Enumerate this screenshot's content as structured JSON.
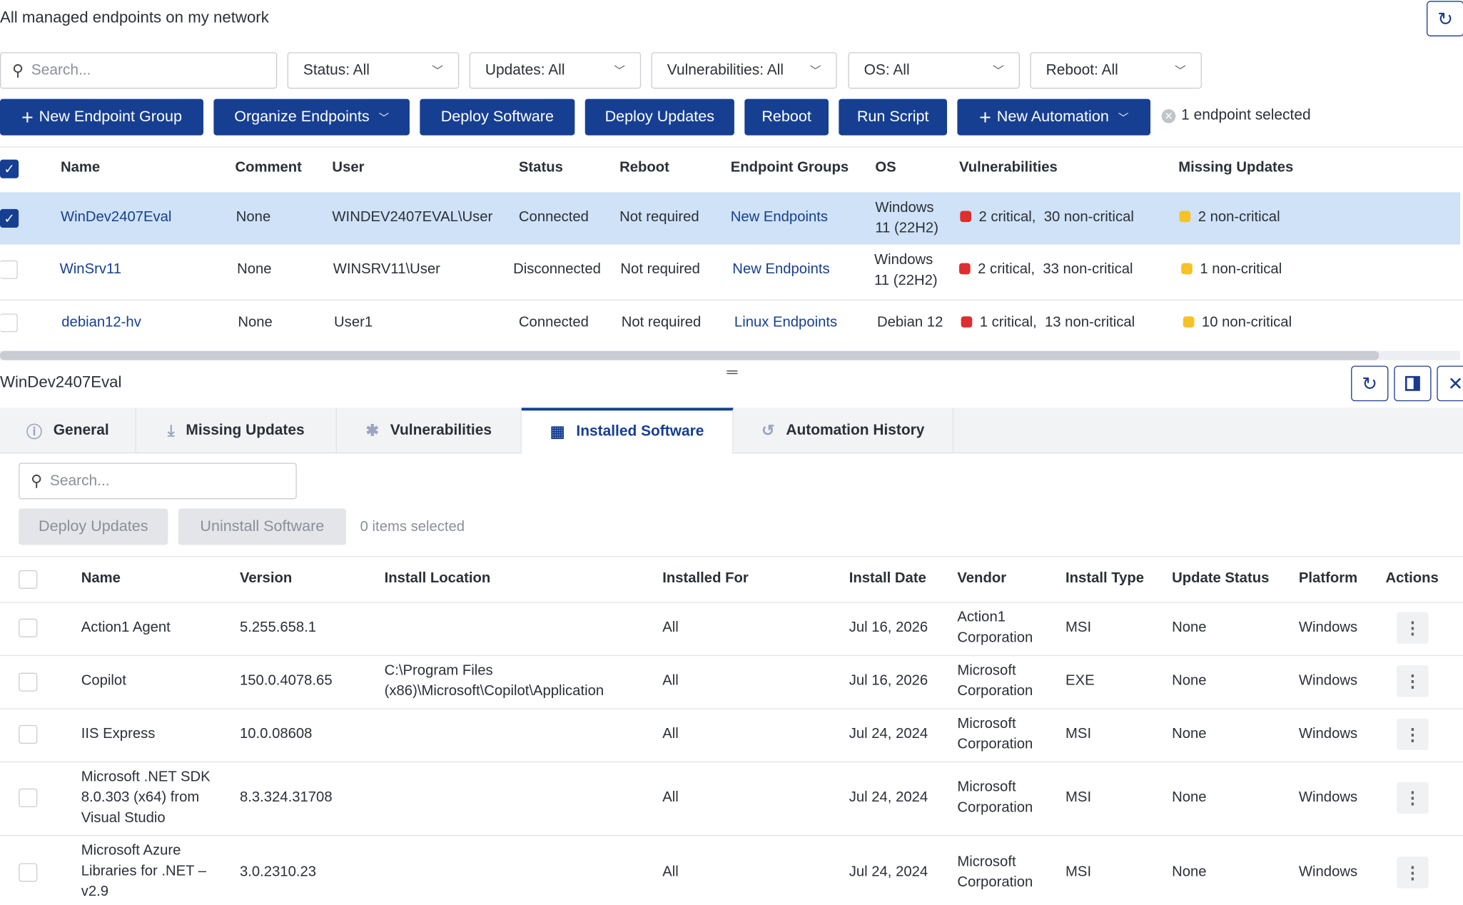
{
  "page": {
    "title": "All managed endpoints on my network"
  },
  "filters": {
    "search_placeholder": "Search...",
    "status": "Status: All",
    "updates": "Updates: All",
    "vulnerabilities": "Vulnerabilities: All",
    "os": "OS: All",
    "reboot": "Reboot: All"
  },
  "toolbar": {
    "new_endpoint_group": "New Endpoint Group",
    "organize_endpoints": "Organize Endpoints",
    "deploy_software": "Deploy Software",
    "deploy_updates": "Deploy Updates",
    "reboot": "Reboot",
    "run_script": "Run Script",
    "new_automation": "New Automation",
    "selection": "1 endpoint selected"
  },
  "endpoints": {
    "headers": {
      "name": "Name",
      "comment": "Comment",
      "user": "User",
      "status": "Status",
      "reboot": "Reboot",
      "groups": "Endpoint Groups",
      "os": "OS",
      "vulnerabilities": "Vulnerabilities",
      "missing": "Missing Updates"
    },
    "rows": [
      {
        "name": "WinDev2407Eval",
        "comment": "None",
        "user": "WINDEV2407EVAL\\User",
        "status": "Connected",
        "reboot": "Not required",
        "group": "New Endpoints",
        "os": "Windows 11 (22H2)",
        "vuln_critical": "2 critical,",
        "vuln_noncritical": "30 non-critical",
        "missing": "2 non-critical"
      },
      {
        "name": "WinSrv11",
        "comment": "None",
        "user": "WINSRV11\\User",
        "status": "Disconnected",
        "reboot": "Not required",
        "group": "New Endpoints",
        "os": "Windows 11 (22H2)",
        "vuln_critical": "2 critical,",
        "vuln_noncritical": "33 non-critical",
        "missing": "1 non-critical"
      },
      {
        "name": "debian12-hv",
        "comment": "None",
        "user": "User1",
        "status": "Connected",
        "reboot": "Not required",
        "group": "Linux Endpoints",
        "os": "Debian 12",
        "vuln_critical": "1 critical,",
        "vuln_noncritical": "13 non-critical",
        "missing": "10 non-critical"
      }
    ]
  },
  "detail": {
    "title": "WinDev2407Eval",
    "tabs": [
      "General",
      "Missing Updates",
      "Vulnerabilities",
      "Installed Software",
      "Automation History"
    ],
    "active_tab": "Installed Software",
    "search_placeholder": "Search...",
    "deploy_updates": "Deploy Updates",
    "uninstall_software": "Uninstall Software",
    "selection": "0 items selected",
    "headers": {
      "name": "Name",
      "version": "Version",
      "location": "Install Location",
      "installed_for": "Installed For",
      "date": "Install Date",
      "vendor": "Vendor",
      "type": "Install Type",
      "update_status": "Update Status",
      "platform": "Platform",
      "actions": "Actions"
    },
    "rows": [
      {
        "name": "Action1 Agent",
        "version": "5.255.658.1",
        "location": "",
        "installed_for": "All",
        "date": "Jul 16, 2026",
        "vendor": "Action1 Corporation",
        "type": "MSI",
        "update_status": "None",
        "platform": "Windows"
      },
      {
        "name": "Copilot",
        "version": "150.0.4078.65",
        "location": "C:\\Program Files (x86)\\Microsoft\\Copilot\\Application",
        "installed_for": "All",
        "date": "Jul 16, 2026",
        "vendor": "Microsoft Corporation",
        "type": "EXE",
        "update_status": "None",
        "platform": "Windows"
      },
      {
        "name": "IIS Express",
        "version": "10.0.08608",
        "location": "",
        "installed_for": "All",
        "date": "Jul 24, 2024",
        "vendor": "Microsoft Corporation",
        "type": "MSI",
        "update_status": "None",
        "platform": "Windows"
      },
      {
        "name": "Microsoft .NET SDK 8.0.303 (x64) from Visual Studio",
        "version": "8.3.324.31708",
        "location": "",
        "installed_for": "All",
        "date": "Jul 24, 2024",
        "vendor": "Microsoft Corporation",
        "type": "MSI",
        "update_status": "None",
        "platform": "Windows"
      },
      {
        "name": "Microsoft Azure Libraries for .NET – v2.9",
        "version": "3.0.2310.23",
        "location": "",
        "installed_for": "All",
        "date": "Jul 24, 2024",
        "vendor": "Microsoft Corporation",
        "type": "MSI",
        "update_status": "None",
        "platform": "Windows"
      }
    ]
  }
}
